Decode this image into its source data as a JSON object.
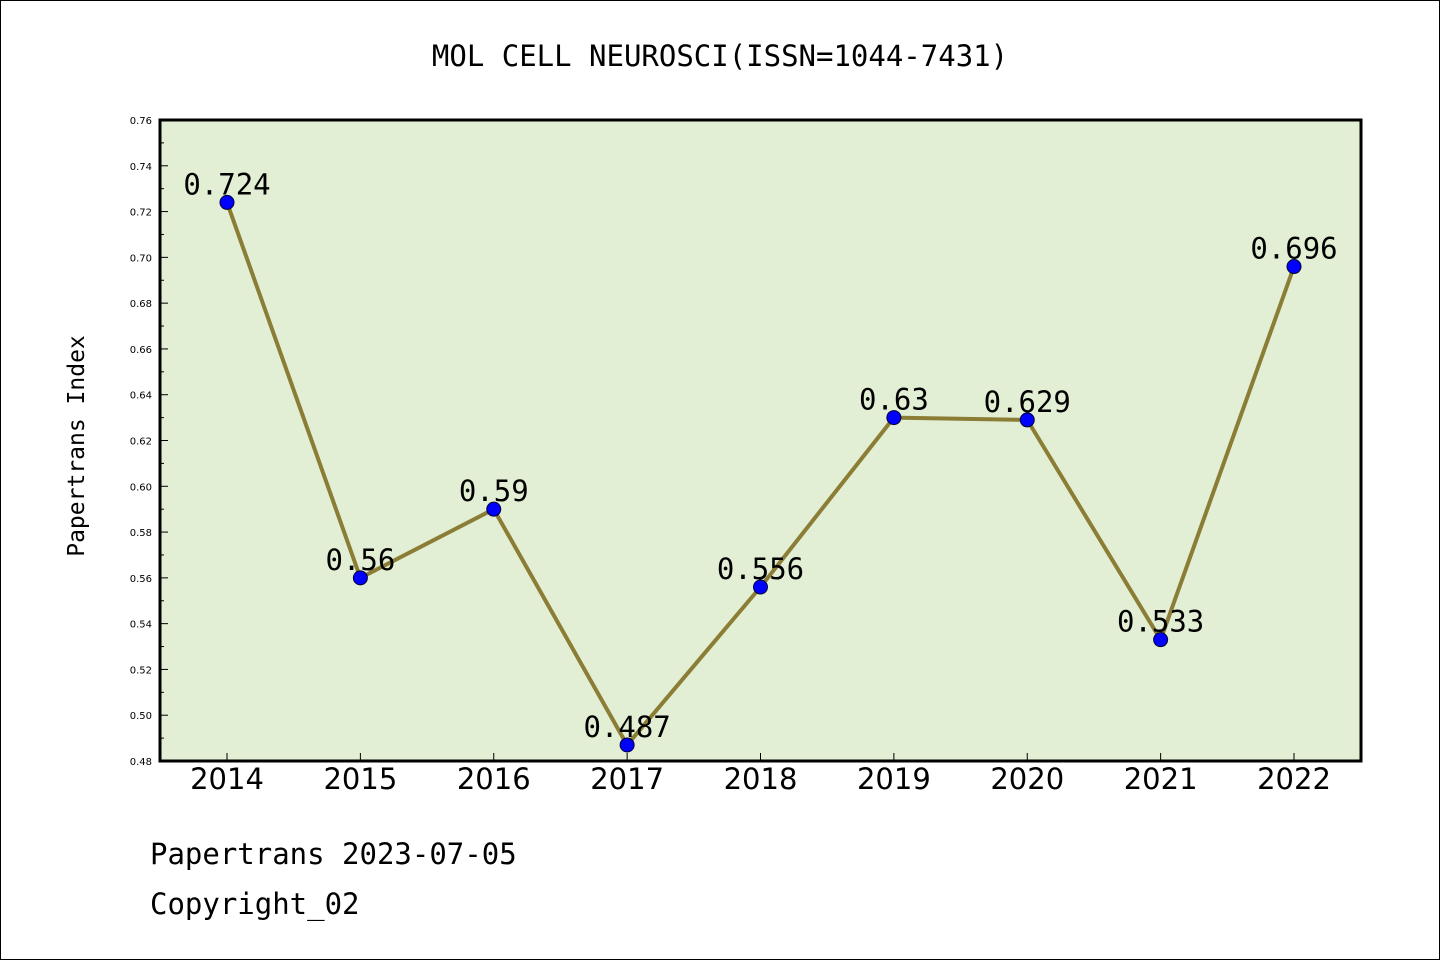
{
  "chart_data": {
    "type": "line",
    "title": "MOL CELL NEUROSCI(ISSN=1044-7431)",
    "xlabel": "",
    "ylabel": "Papertrans Index",
    "categories": [
      "2014",
      "2015",
      "2016",
      "2017",
      "2018",
      "2019",
      "2020",
      "2021",
      "2022"
    ],
    "values": [
      0.724,
      0.56,
      0.59,
      0.487,
      0.556,
      0.63,
      0.629,
      0.533,
      0.696
    ],
    "data_labels": [
      "0.724",
      "0.56",
      "0.59",
      "0.487",
      "0.556",
      "0.63",
      "0.629",
      "0.533",
      "0.696"
    ],
    "ylim": [
      0.48,
      0.76
    ],
    "yticks": [
      "0.48",
      "0.50",
      "0.52",
      "0.54",
      "0.56",
      "0.58",
      "0.60",
      "0.62",
      "0.64",
      "0.66",
      "0.68",
      "0.70",
      "0.72",
      "0.74",
      "0.76"
    ],
    "grid": false,
    "colors": {
      "plot_background": "#e2efd4",
      "line": "#8b7d35",
      "marker": "#0000ff"
    }
  },
  "footer": {
    "line1": "Papertrans 2023-07-05",
    "line2": "Copyright_02"
  }
}
